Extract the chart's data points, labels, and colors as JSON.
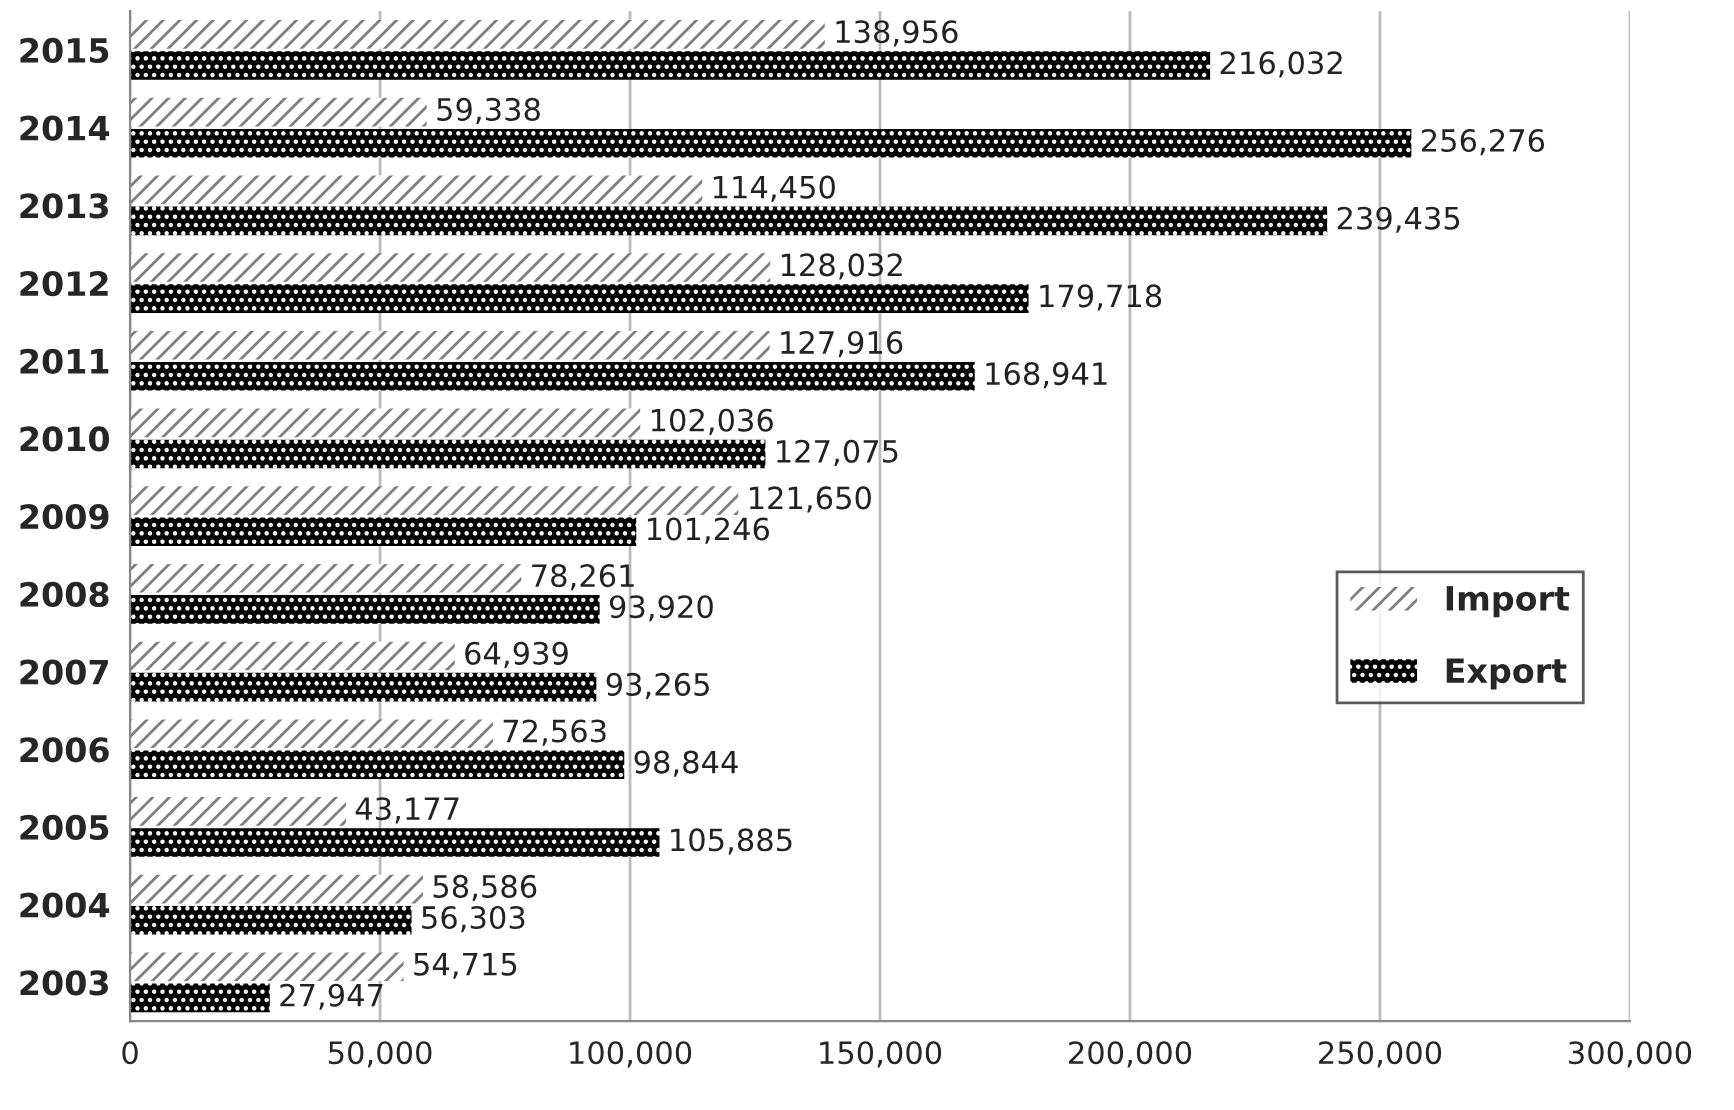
{
  "chart_data": {
    "type": "bar",
    "orientation": "horizontal",
    "categories": [
      "2015",
      "2014",
      "2013",
      "2012",
      "2011",
      "2010",
      "2009",
      "2008",
      "2007",
      "2006",
      "2005",
      "2004",
      "2003"
    ],
    "series": [
      {
        "name": "Import",
        "color": "#7f7f7f",
        "values": [
          138956,
          59338,
          114450,
          128032,
          127916,
          102036,
          121650,
          78261,
          64939,
          72563,
          43177,
          58586,
          54715
        ],
        "value_labels": [
          "138,956",
          "59,338",
          "114,450",
          "128,032",
          "127,916",
          "102,036",
          "121,650",
          "78,261",
          "64,939",
          "72,563",
          "43,177",
          "58,586",
          "54,715"
        ]
      },
      {
        "name": "Export",
        "color": "#000000",
        "values": [
          216032,
          256276,
          239435,
          179718,
          168941,
          127075,
          101246,
          93920,
          93265,
          98844,
          105885,
          56303,
          27947
        ],
        "value_labels": [
          "216,032",
          "256,276",
          "239,435",
          "179,718",
          "168,941",
          "127,075",
          "101,246",
          "93,920",
          "93,265",
          "98,844",
          "105,885",
          "56,303",
          "27,947"
        ]
      }
    ],
    "xlim": [
      0,
      300000
    ],
    "xticks": [
      0,
      {
        "value": 50000,
        "label": "50,000"
      },
      {
        "value": 100000,
        "label": "100,000"
      },
      {
        "value": 150000,
        "label": "150,000"
      },
      {
        "value": 200000,
        "label": "200,000"
      },
      {
        "value": 250000,
        "label": "250,000"
      },
      {
        "value": 300000,
        "label": "300,000"
      }
    ],
    "grid": "x",
    "legend": "right"
  }
}
